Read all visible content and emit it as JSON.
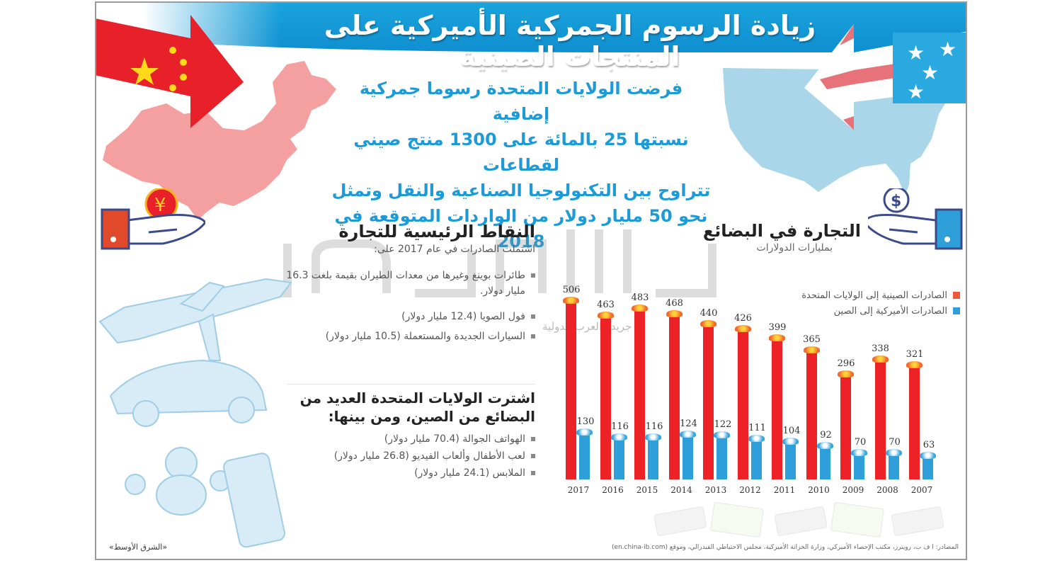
{
  "header": {
    "title": "زيادة الرسوم الجمركية الأميركية على المنتجات الصينية"
  },
  "intro": {
    "lines": [
      "فرضت الولايات المتحدة رسوما جمركية إضافية",
      "نسبتها 25 بالمائة على 1300 منتج صيني لقطاعات",
      "تتراوح بين التكنولوجيا الصناعية والنقل وتمثل",
      "نحو 50 مليار دولار من الواردات المتوقعة في 2018"
    ]
  },
  "key_points": {
    "title": "النقاط الرئيسية للتجارة",
    "subtitle": "اشتملت الصادرات في عام 2017 على:",
    "items": [
      "طائرات بوينغ وغيرها من معدات الطيران بقيمة بلغت 16.3 مليار دولار.",
      "فول الصويا (12.4 مليار دولار)",
      "السيارات الجديدة والمستعملة (10.5 مليار دولار)"
    ],
    "imports_title": "اشترت الولايات المتحدة العديد من البضائع من الصين، ومن بينها:",
    "imports_items": [
      "الهواتف الجوالة (70.4 مليار دولار)",
      "لعب الأطفال وألعاب الفيديو (26.8 مليار دولار)",
      "الملابس (24.1 مليار دولار)"
    ]
  },
  "watermark": {
    "brand": "الشرق الأوسط",
    "sub": "جريدة العرب الدولية"
  },
  "chart_data": {
    "type": "bar",
    "title": "التجارة في البضائع",
    "subtitle": "بمليارات الدولارات",
    "xlabel": "",
    "ylabel": "",
    "categories": [
      "2017",
      "2016",
      "2015",
      "2014",
      "2013",
      "2012",
      "2011",
      "2010",
      "2009",
      "2008",
      "2007"
    ],
    "series": [
      {
        "name": "الصادرات الصينية إلى الولايات المتحدة",
        "color": "#ec2227",
        "values": [
          506,
          463,
          483,
          468,
          440,
          426,
          399,
          365,
          296,
          338,
          321
        ]
      },
      {
        "name": "الصادرات الأميركية إلى الصين",
        "color": "#2e9fd8",
        "values": [
          130,
          116,
          116,
          124,
          122,
          111,
          104,
          92,
          70,
          70,
          63
        ]
      }
    ],
    "ylim": [
      0,
      550
    ],
    "grid": false,
    "legend_position": "top-right",
    "data_labels": true
  },
  "footer": {
    "source": "المصادر: ا ف ب، رويترز، مكتب الإحصاء الأميركي، وزارة الخزانة الأميركية، مجلس الاحتياطي الفيدرالي، وموقع (en.china-ib.com)",
    "credit": "«الشرق الأوسط»"
  },
  "colors": {
    "banner_blue": "#1aa3dc",
    "intro_text": "#1e9ad6",
    "china_red": "#ec2227",
    "us_blue": "#2e9fd8",
    "china_map": "#f4a0a0",
    "usa_map": "#a9d6e8"
  }
}
